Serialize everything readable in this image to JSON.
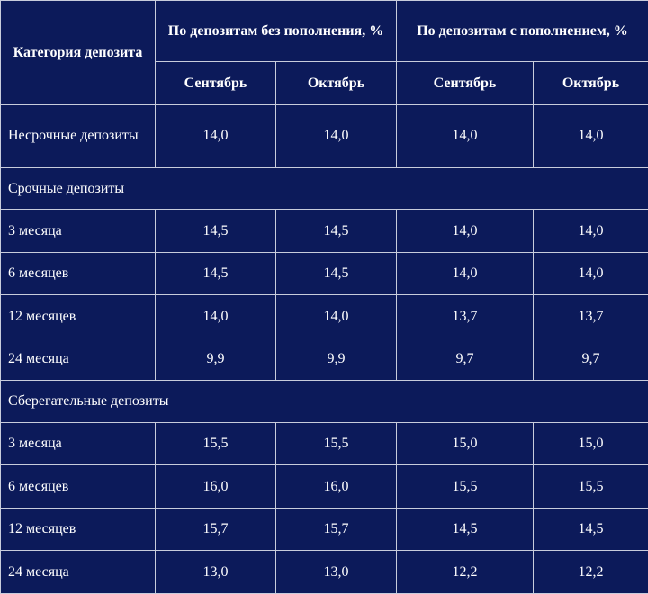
{
  "header": {
    "category": "Категория депозита",
    "group_no_topup": "По депозитам без пополнения, %",
    "group_topup": "По депозитам с пополнением, %",
    "months": [
      "Сентябрь",
      "Октябрь",
      "Сентябрь",
      "Октябрь"
    ]
  },
  "sections": [
    {
      "title": "",
      "rows": [
        {
          "label": "Несрочные депозиты",
          "values": [
            "14,0",
            "14,0",
            "14,0",
            "14,0"
          ]
        }
      ]
    },
    {
      "title": "Срочные депозиты",
      "rows": [
        {
          "label": "3 месяца",
          "values": [
            "14,5",
            "14,5",
            "14,0",
            "14,0"
          ]
        },
        {
          "label": "6 месяцев",
          "values": [
            "14,5",
            "14,5",
            "14,0",
            "14,0"
          ]
        },
        {
          "label": "12 месяцев",
          "values": [
            "14,0",
            "14,0",
            "13,7",
            "13,7"
          ]
        },
        {
          "label": "24 месяца",
          "values": [
            "9,9",
            "9,9",
            "9,7",
            "9,7"
          ]
        }
      ]
    },
    {
      "title": "Сберегательные депозиты",
      "rows": [
        {
          "label": "3 месяца",
          "values": [
            "15,5",
            "15,5",
            "15,0",
            "15,0"
          ]
        },
        {
          "label": "6 месяцев",
          "values": [
            "16,0",
            "16,0",
            "15,5",
            "15,5"
          ]
        },
        {
          "label": "12 месяцев",
          "values": [
            "15,7",
            "15,7",
            "14,5",
            "14,5"
          ]
        },
        {
          "label": "24 месяца",
          "values": [
            "13,0",
            "13,0",
            "12,2",
            "12,2"
          ]
        }
      ]
    }
  ],
  "colors": {
    "background": "#0c1a5a",
    "text": "#ffffff",
    "grid": "#c8ccdc"
  }
}
